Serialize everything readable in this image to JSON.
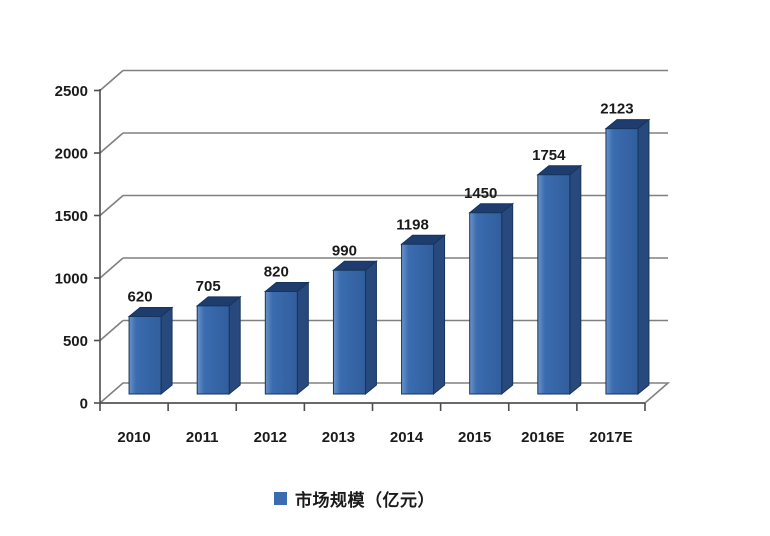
{
  "chart_data": {
    "type": "bar",
    "projection": "3d-oblique",
    "title": "",
    "categories": [
      "2010",
      "2011",
      "2012",
      "2013",
      "2014",
      "2015",
      "2016E",
      "2017E"
    ],
    "series": [
      {
        "name": "市场规模（亿元）",
        "values": [
          620,
          705,
          820,
          990,
          1198,
          1450,
          1754,
          2123
        ]
      }
    ],
    "data_labels": [
      620,
      705,
      820,
      990,
      1198,
      1450,
      1754,
      2123
    ],
    "ylim": [
      0,
      2500
    ],
    "yticks": [
      0,
      500,
      1000,
      1500,
      2000,
      2500
    ],
    "grid": true,
    "legend_position": "bottom"
  },
  "legend": {
    "label": "市场规模（亿元）"
  },
  "colors": {
    "background": "#ffffff",
    "bar_front": "#3a6cb0",
    "bar_front_light": "#6b93c8",
    "bar_front_dark": "#315e9c",
    "bar_top": "#1e3c6e",
    "bar_side": "#27497d",
    "bar_outline": "#16355c",
    "gridline": "#808080",
    "axis": "#4d4d4d",
    "label_text": "#1a1a1a",
    "legend_swatch": "#3a6cb0"
  }
}
